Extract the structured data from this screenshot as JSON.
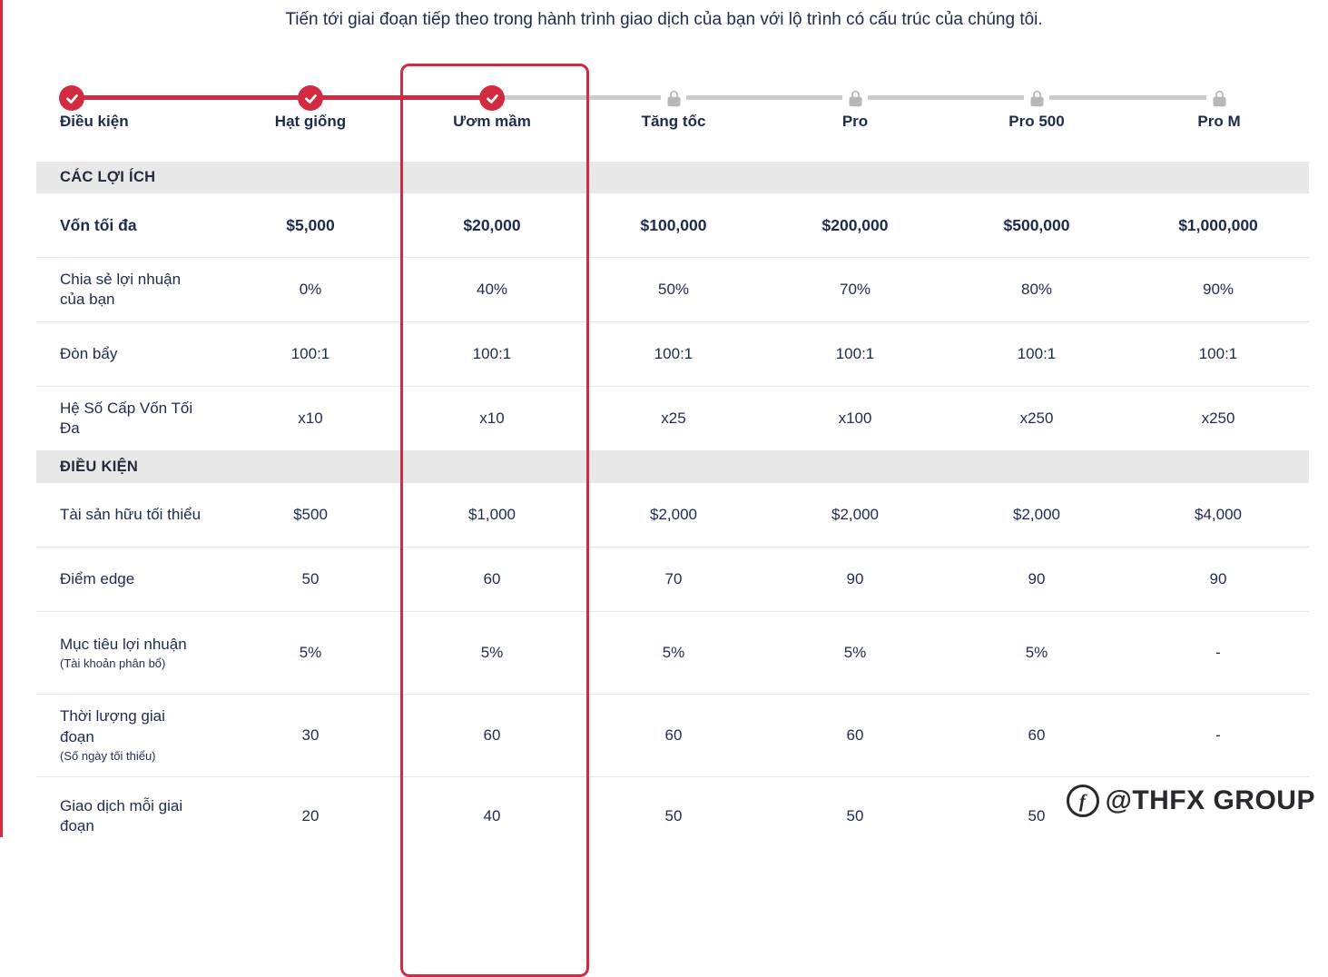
{
  "page": {
    "title": "Tiến tới giai đoạn tiếp theo trong hành trình giao dịch của bạn với lộ trình có cấu trúc của chúng tôi.",
    "watermark": "@THFX GROUP"
  },
  "colors": {
    "accent_red": "#d22b3f",
    "dark_navy": "#1e2b4d",
    "locked_gray": "#b7b7b7",
    "line_gray": "#cbcbcb",
    "section_header_bg": "#e8e8e8"
  },
  "stepper": {
    "steps": [
      {
        "label": "Điều kiện",
        "state": "done"
      },
      {
        "label": "Hạt giống",
        "state": "done"
      },
      {
        "label": "Ươm mầm",
        "state": "done",
        "active": true
      },
      {
        "label": "Tăng tốc",
        "state": "locked"
      },
      {
        "label": "Pro",
        "state": "locked"
      },
      {
        "label": "Pro 500",
        "state": "locked"
      },
      {
        "label": "Pro M",
        "state": "locked"
      }
    ]
  },
  "table": {
    "sections": [
      {
        "header": "CÁC LỢI ÍCH",
        "rows": [
          {
            "label": "Vốn tối đa",
            "bold": true,
            "values": [
              "$5,000",
              "$20,000",
              "$100,000",
              "$200,000",
              "$500,000",
              "$1,000,000"
            ]
          },
          {
            "label": "Chia sẻ lợi nhuận của bạn",
            "values": [
              "0%",
              "40%",
              "50%",
              "70%",
              "80%",
              "90%"
            ]
          },
          {
            "label": "Đòn bẩy",
            "values": [
              "100:1",
              "100:1",
              "100:1",
              "100:1",
              "100:1",
              "100:1"
            ]
          },
          {
            "label": "Hệ Số Cấp Vốn Tối Đa",
            "values": [
              "x10",
              "x10",
              "x25",
              "x100",
              "x250",
              "x250"
            ]
          }
        ]
      },
      {
        "header": "ĐIỀU KIỆN",
        "rows": [
          {
            "label": "Tài sản hữu tối thiểu",
            "values": [
              "$500",
              "$1,000",
              "$2,000",
              "$2,000",
              "$2,000",
              "$4,000"
            ]
          },
          {
            "label": "Điểm edge",
            "values": [
              "50",
              "60",
              "70",
              "90",
              "90",
              "90"
            ]
          },
          {
            "label": "Mục tiêu lợi nhuận",
            "sublabel": "(Tài khoản phân bổ)",
            "values": [
              "5%",
              "5%",
              "5%",
              "5%",
              "5%",
              "-"
            ]
          },
          {
            "label": "Thời lượng giai đoạn",
            "sublabel": "(Số ngày tối thiểu)",
            "values": [
              "30",
              "60",
              "60",
              "60",
              "60",
              "-"
            ]
          },
          {
            "label": "Giao dịch mỗi giai đoạn",
            "values": [
              "20",
              "40",
              "50",
              "50",
              "50",
              ""
            ]
          }
        ]
      }
    ]
  }
}
